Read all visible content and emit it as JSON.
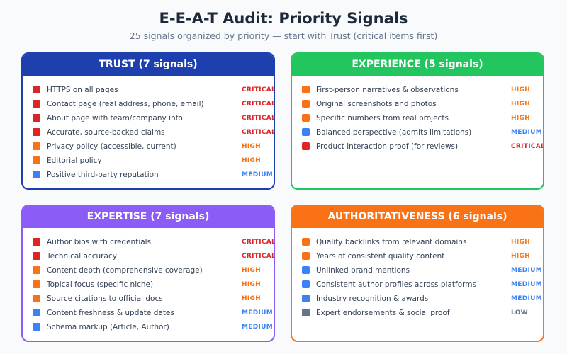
{
  "header": {
    "title": "E-E-A-T Audit: Priority Signals",
    "subtitle": "25 signals organized by priority — start with Trust (critical items first)"
  },
  "panels": [
    {
      "title": "TRUST (7 signals)",
      "color": "#1e40af",
      "items": [
        {
          "label": "HTTPS on all pages",
          "priority": "CRITICAL",
          "color": "#dc2626"
        },
        {
          "label": "Contact page (real address, phone, email)",
          "priority": "CRITICAL",
          "color": "#dc2626"
        },
        {
          "label": "About page with team/company info",
          "priority": "CRITICAL",
          "color": "#dc2626"
        },
        {
          "label": "Accurate, source-backed claims",
          "priority": "CRITICAL",
          "color": "#dc2626"
        },
        {
          "label": "Privacy policy (accessible, current)",
          "priority": "HIGH",
          "color": "#f97316"
        },
        {
          "label": "Editorial policy",
          "priority": "HIGH",
          "color": "#f97316"
        },
        {
          "label": "Positive third-party reputation",
          "priority": "MEDIUM",
          "color": "#3b82f6"
        }
      ]
    },
    {
      "title": "EXPERIENCE (5 signals)",
      "color": "#22c55e",
      "items": [
        {
          "label": "First-person narratives & observations",
          "priority": "HIGH",
          "color": "#f97316"
        },
        {
          "label": "Original screenshots and photos",
          "priority": "HIGH",
          "color": "#f97316"
        },
        {
          "label": "Specific numbers from real projects",
          "priority": "HIGH",
          "color": "#f97316"
        },
        {
          "label": "Balanced perspective (admits limitations)",
          "priority": "MEDIUM",
          "color": "#3b82f6"
        },
        {
          "label": "Product interaction proof (for reviews)",
          "priority": "CRITICAL",
          "color": "#dc2626"
        }
      ]
    },
    {
      "title": "EXPERTISE (7 signals)",
      "color": "#8b5cf6",
      "items": [
        {
          "label": "Author bios with credentials",
          "priority": "CRITICAL",
          "color": "#dc2626"
        },
        {
          "label": "Technical accuracy",
          "priority": "CRITICAL",
          "color": "#dc2626"
        },
        {
          "label": "Content depth (comprehensive coverage)",
          "priority": "HIGH",
          "color": "#f97316"
        },
        {
          "label": "Topical focus (specific niche)",
          "priority": "HIGH",
          "color": "#f97316"
        },
        {
          "label": "Source citations to official docs",
          "priority": "HIGH",
          "color": "#f97316"
        },
        {
          "label": "Content freshness & update dates",
          "priority": "MEDIUM",
          "color": "#3b82f6"
        },
        {
          "label": "Schema markup (Article, Author)",
          "priority": "MEDIUM",
          "color": "#3b82f6"
        }
      ]
    },
    {
      "title": "AUTHORITATIVENESS (6 signals)",
      "color": "#f97316",
      "items": [
        {
          "label": "Quality backlinks from relevant domains",
          "priority": "HIGH",
          "color": "#f97316"
        },
        {
          "label": "Years of consistent quality content",
          "priority": "HIGH",
          "color": "#f97316"
        },
        {
          "label": "Unlinked brand mentions",
          "priority": "MEDIUM",
          "color": "#3b82f6"
        },
        {
          "label": "Consistent author profiles across platforms",
          "priority": "MEDIUM",
          "color": "#3b82f6"
        },
        {
          "label": "Industry recognition & awards",
          "priority": "MEDIUM",
          "color": "#3b82f6"
        },
        {
          "label": "Expert endorsements & social proof",
          "priority": "LOW",
          "color": "#64748b"
        }
      ]
    }
  ]
}
